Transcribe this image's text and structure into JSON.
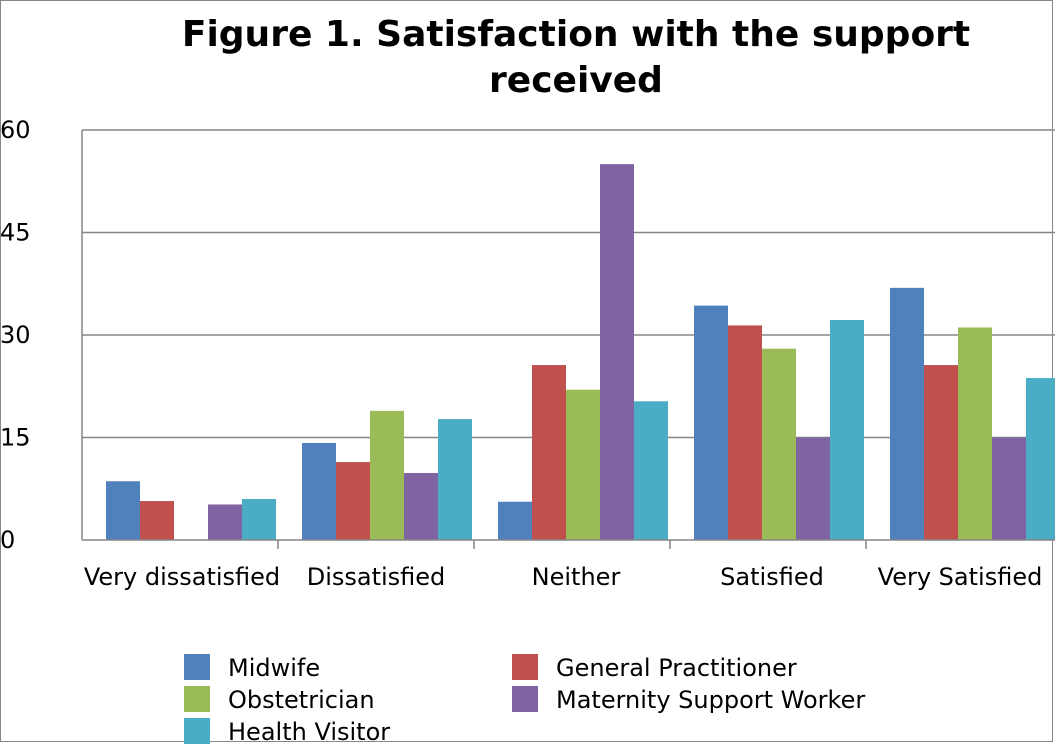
{
  "chart_data": {
    "type": "bar",
    "title": "Figure 1. Satisfaction with the support received",
    "title_lines": [
      "Figure 1. Satisfaction with the support",
      "received"
    ],
    "xlabel": "",
    "ylabel": "",
    "ylim": [
      0,
      60
    ],
    "yticks": [
      0,
      15,
      30,
      45,
      60
    ],
    "grid": true,
    "legend_position": "bottom",
    "categories": [
      "Very dissatisfied",
      "Dissatisfied",
      "Neither",
      "Satisfied",
      "Very Satisfied"
    ],
    "series": [
      {
        "name": "Midwife",
        "color": "#4F81BD",
        "values": [
          8.6,
          14.2,
          5.6,
          34.3,
          36.9
        ]
      },
      {
        "name": "General Practitioner",
        "color": "#C0504D",
        "values": [
          5.7,
          11.4,
          25.6,
          31.4,
          25.6
        ]
      },
      {
        "name": "Obstetrician",
        "color": "#9BBB59",
        "values": [
          0,
          18.9,
          22.0,
          28.0,
          31.1
        ]
      },
      {
        "name": "Maternity Support Worker",
        "color": "#8064A2",
        "values": [
          5.2,
          9.8,
          55.0,
          15.0,
          15.0
        ]
      },
      {
        "name": "Health Visitor",
        "color": "#4BACC6",
        "values": [
          6.0,
          17.7,
          20.3,
          32.2,
          23.7
        ]
      }
    ]
  }
}
